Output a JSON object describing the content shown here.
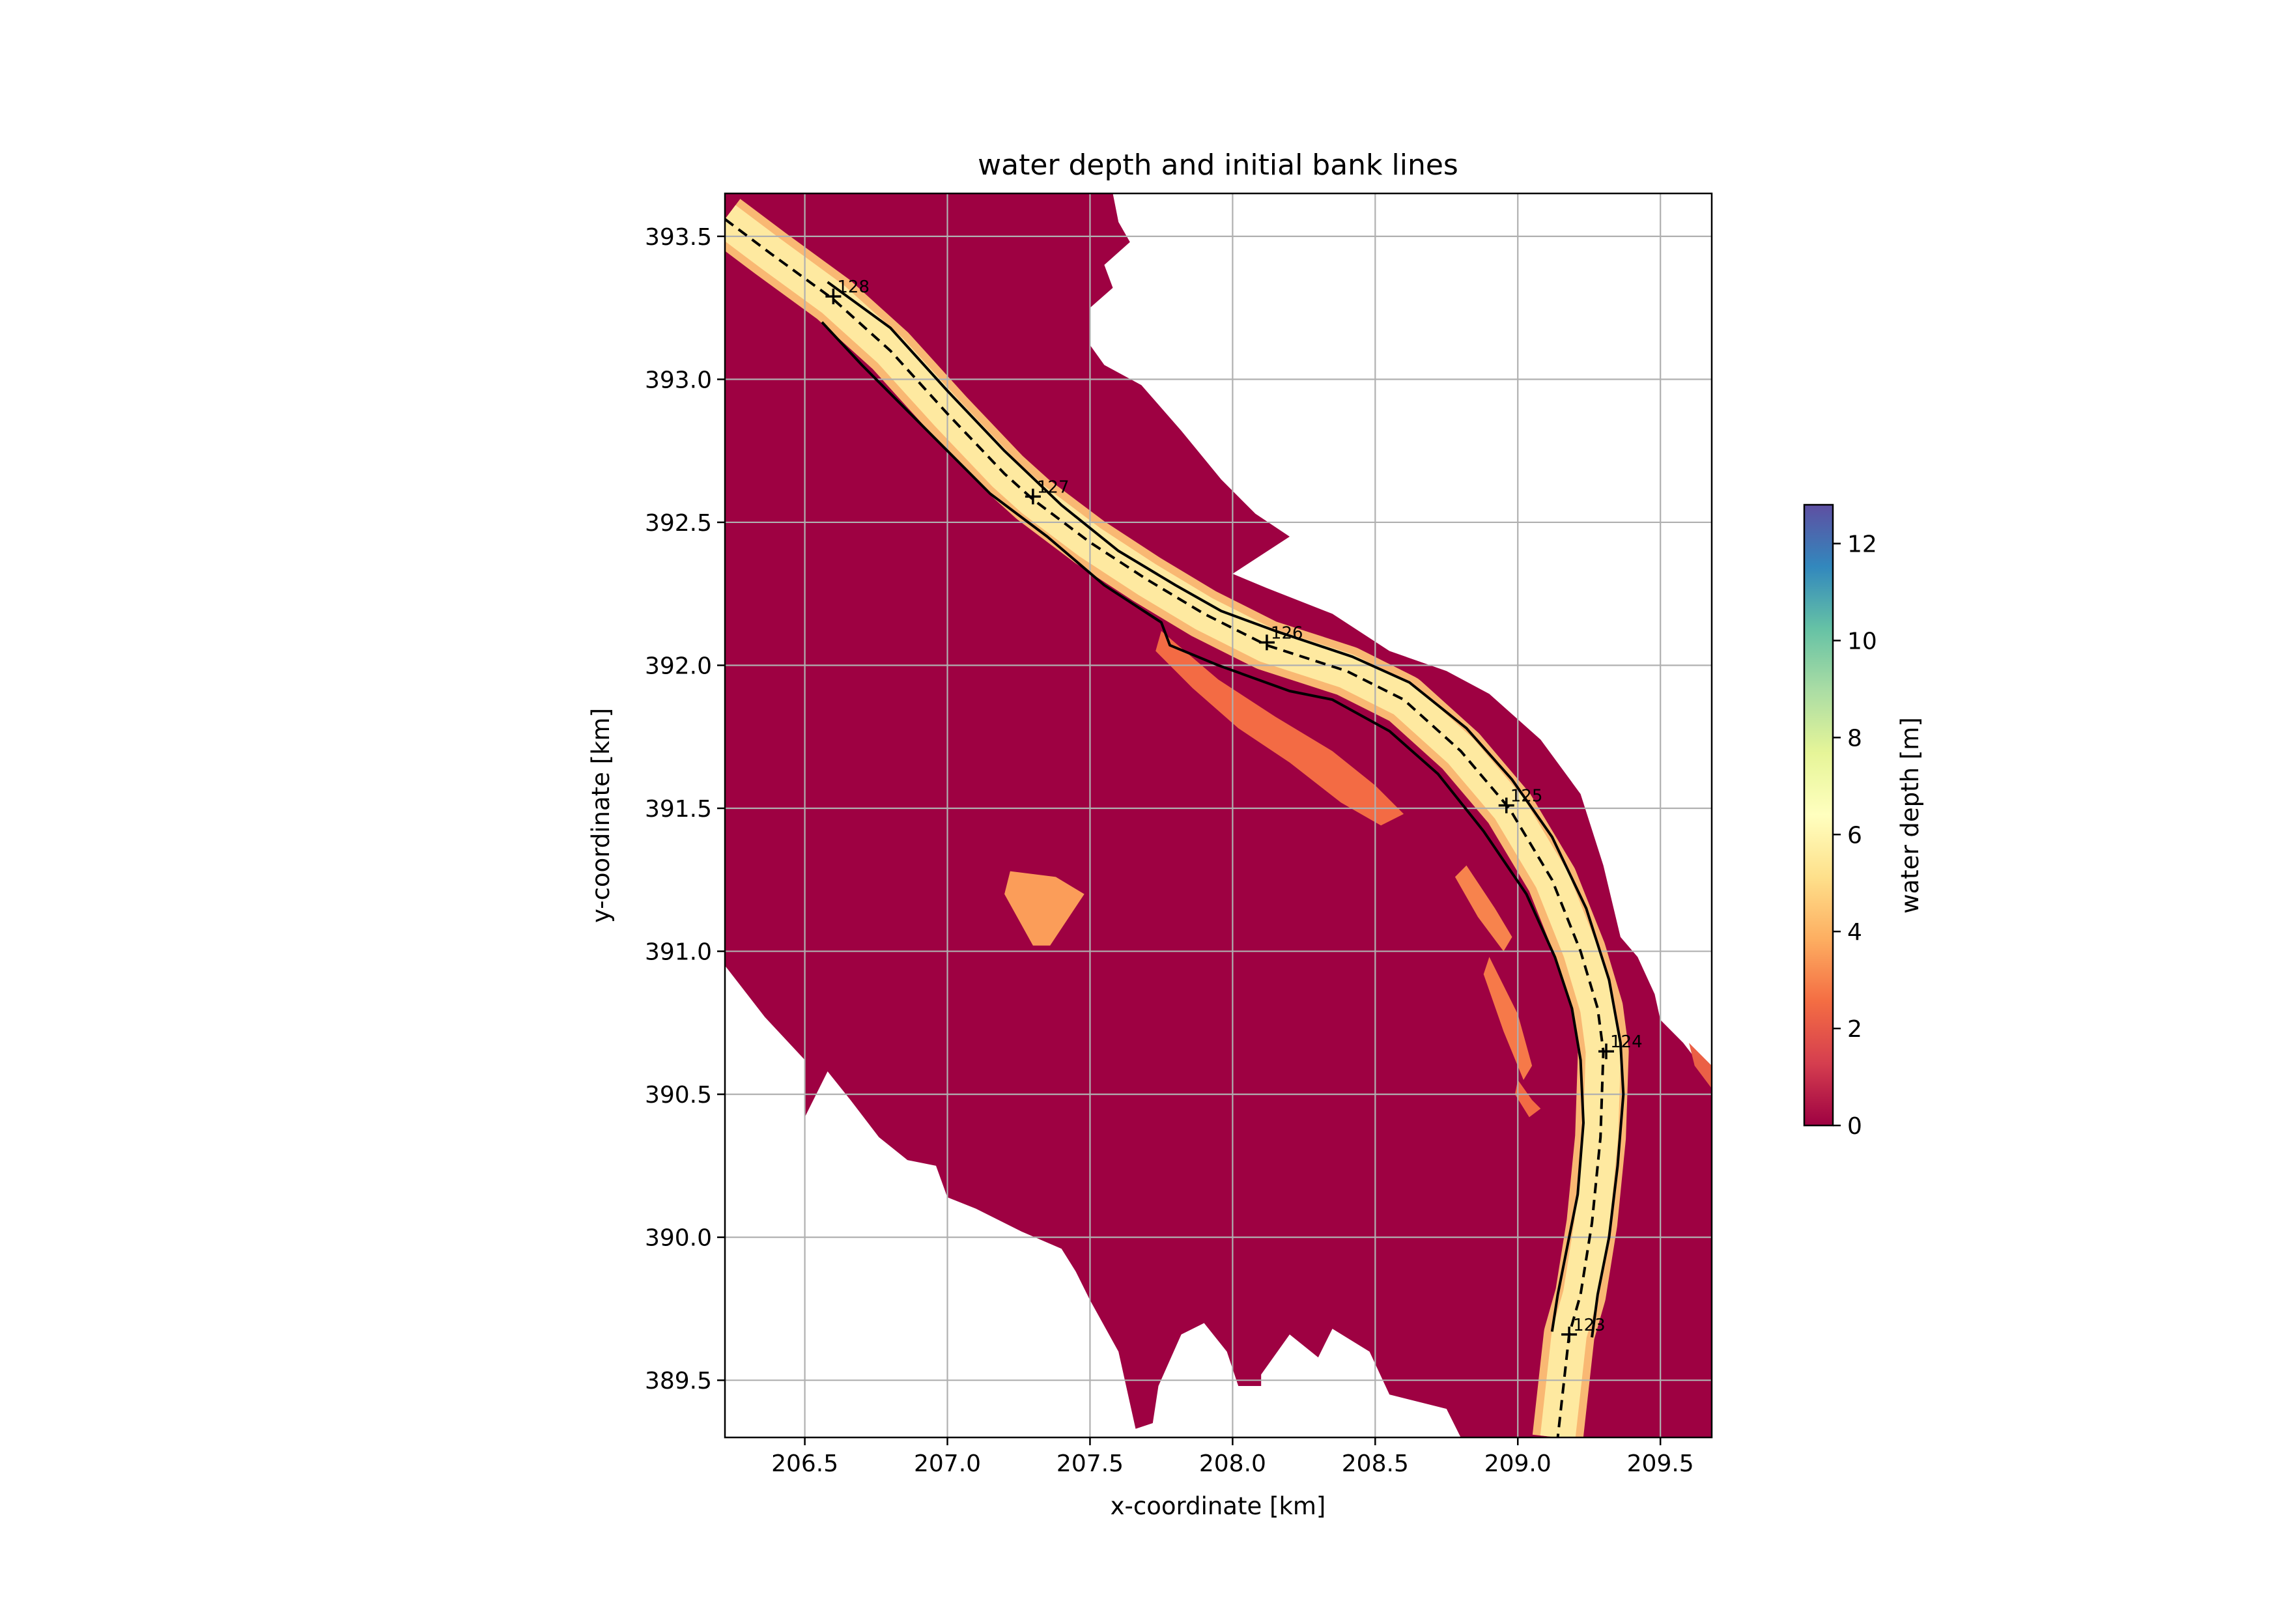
{
  "chart_data": {
    "type": "heatmap",
    "title": "water depth and initial bank lines",
    "xlabel": "x-coordinate [km]",
    "ylabel": "y-coordinate [km]",
    "xlim": [
      206.22,
      209.68
    ],
    "ylim": [
      389.3,
      393.65
    ],
    "xticks": [
      206.5,
      207.0,
      207.5,
      208.0,
      208.5,
      209.0,
      209.5
    ],
    "xtick_labels": [
      "206.5",
      "207.0",
      "207.5",
      "208.0",
      "208.5",
      "209.0",
      "209.5"
    ],
    "yticks": [
      389.5,
      390.0,
      390.5,
      391.0,
      391.5,
      392.0,
      392.5,
      393.0,
      393.5
    ],
    "ytick_labels": [
      "389.5",
      "390.0",
      "390.5",
      "391.0",
      "391.5",
      "392.0",
      "392.5",
      "393.0",
      "393.5"
    ],
    "grid": true,
    "colorbar": {
      "label": "water depth [m]",
      "range": [
        0,
        12.8
      ],
      "ticks": [
        0,
        2,
        4,
        6,
        8,
        10,
        12
      ],
      "tick_labels": [
        "0",
        "2",
        "4",
        "6",
        "8",
        "10",
        "12"
      ],
      "colormap": "Spectral",
      "stops": [
        "#9e0142",
        "#d53e4f",
        "#f46d43",
        "#fdae61",
        "#fee08b",
        "#ffffbf",
        "#e6f598",
        "#abdda4",
        "#66c2a5",
        "#3288bd",
        "#5e4fa2"
      ]
    },
    "floodplain_color": "#9e0142",
    "channel_color": "#fee9a0",
    "floodplain_outline": [
      [
        206.22,
        393.65
      ],
      [
        207.58,
        393.65
      ],
      [
        207.6,
        393.55
      ],
      [
        207.64,
        393.48
      ],
      [
        207.55,
        393.4
      ],
      [
        207.58,
        393.32
      ],
      [
        207.5,
        393.25
      ],
      [
        207.5,
        393.12
      ],
      [
        207.55,
        393.05
      ],
      [
        207.68,
        392.98
      ],
      [
        207.82,
        392.82
      ],
      [
        207.96,
        392.65
      ],
      [
        208.08,
        392.53
      ],
      [
        208.2,
        392.45
      ],
      [
        208.0,
        392.32
      ],
      [
        208.12,
        392.27
      ],
      [
        208.35,
        392.18
      ],
      [
        208.55,
        392.05
      ],
      [
        208.75,
        391.98
      ],
      [
        208.9,
        391.9
      ],
      [
        209.08,
        391.74
      ],
      [
        209.22,
        391.55
      ],
      [
        209.3,
        391.3
      ],
      [
        209.36,
        391.05
      ],
      [
        209.42,
        390.98
      ],
      [
        209.48,
        390.85
      ],
      [
        209.5,
        390.76
      ],
      [
        209.58,
        390.68
      ],
      [
        209.68,
        390.55
      ],
      [
        209.68,
        389.3
      ],
      [
        208.8,
        389.3
      ],
      [
        208.75,
        389.4
      ],
      [
        208.55,
        389.45
      ],
      [
        208.48,
        389.6
      ],
      [
        208.35,
        389.68
      ],
      [
        208.3,
        389.58
      ],
      [
        208.2,
        389.66
      ],
      [
        208.1,
        389.52
      ],
      [
        208.1,
        389.48
      ],
      [
        208.02,
        389.48
      ],
      [
        207.98,
        389.6
      ],
      [
        207.9,
        389.7
      ],
      [
        207.82,
        389.66
      ],
      [
        207.74,
        389.48
      ],
      [
        207.72,
        389.35
      ],
      [
        207.66,
        389.33
      ],
      [
        207.6,
        389.6
      ],
      [
        207.5,
        389.78
      ],
      [
        207.45,
        389.88
      ],
      [
        207.4,
        389.96
      ],
      [
        207.26,
        390.02
      ],
      [
        207.1,
        390.1
      ],
      [
        207.0,
        390.14
      ],
      [
        206.96,
        390.25
      ],
      [
        206.86,
        390.27
      ],
      [
        206.76,
        390.35
      ],
      [
        206.66,
        390.48
      ],
      [
        206.58,
        390.58
      ],
      [
        206.5,
        390.42
      ],
      [
        206.5,
        390.62
      ],
      [
        206.36,
        390.77
      ],
      [
        206.22,
        390.95
      ]
    ],
    "channel_centerline": [
      [
        206.22,
        393.56
      ],
      [
        206.38,
        393.44
      ],
      [
        206.6,
        393.28
      ],
      [
        206.8,
        393.1
      ],
      [
        207.0,
        392.88
      ],
      [
        207.2,
        392.67
      ],
      [
        207.3,
        392.58
      ],
      [
        207.5,
        392.43
      ],
      [
        207.7,
        392.3
      ],
      [
        207.9,
        392.18
      ],
      [
        208.12,
        392.07
      ],
      [
        208.4,
        391.98
      ],
      [
        208.6,
        391.88
      ],
      [
        208.8,
        391.7
      ],
      [
        208.97,
        391.5
      ],
      [
        209.12,
        391.25
      ],
      [
        209.22,
        391.0
      ],
      [
        209.28,
        390.8
      ],
      [
        209.3,
        390.65
      ],
      [
        209.29,
        390.35
      ],
      [
        209.26,
        390.05
      ],
      [
        209.22,
        389.8
      ],
      [
        209.18,
        389.66
      ],
      [
        209.14,
        389.3
      ]
    ],
    "bank_lines": [
      [
        [
          206.58,
          393.34
        ],
        [
          206.8,
          393.18
        ],
        [
          207.0,
          392.96
        ],
        [
          207.2,
          392.75
        ],
        [
          207.4,
          392.56
        ],
        [
          207.6,
          392.4
        ],
        [
          207.8,
          392.28
        ],
        [
          207.96,
          392.19
        ],
        [
          208.15,
          392.12
        ],
        [
          208.42,
          392.03
        ],
        [
          208.62,
          391.94
        ],
        [
          208.82,
          391.78
        ],
        [
          208.98,
          391.6
        ],
        [
          209.12,
          391.4
        ],
        [
          209.24,
          391.15
        ],
        [
          209.32,
          390.9
        ],
        [
          209.36,
          390.68
        ],
        [
          209.37,
          390.5
        ],
        [
          209.35,
          390.25
        ],
        [
          209.32,
          390.0
        ],
        [
          209.28,
          389.8
        ],
        [
          209.26,
          389.65
        ]
      ],
      [
        [
          206.56,
          393.2
        ],
        [
          206.7,
          393.05
        ],
        [
          206.95,
          392.8
        ],
        [
          207.15,
          392.6
        ],
        [
          207.35,
          392.45
        ],
        [
          207.55,
          392.28
        ],
        [
          207.75,
          392.15
        ],
        [
          207.78,
          392.07
        ],
        [
          207.95,
          392.0
        ],
        [
          208.2,
          391.91
        ],
        [
          208.35,
          391.88
        ],
        [
          208.55,
          391.77
        ],
        [
          208.72,
          391.62
        ],
        [
          208.88,
          391.42
        ],
        [
          209.03,
          391.2
        ],
        [
          209.13,
          390.98
        ],
        [
          209.19,
          390.8
        ],
        [
          209.22,
          390.62
        ],
        [
          209.23,
          390.4
        ],
        [
          209.21,
          390.15
        ],
        [
          209.17,
          389.95
        ],
        [
          209.14,
          389.8
        ],
        [
          209.12,
          389.67
        ]
      ]
    ],
    "shallow_patches": [
      {
        "depth": 2.5,
        "points": [
          [
            207.75,
            392.12
          ],
          [
            207.95,
            391.95
          ],
          [
            208.15,
            391.82
          ],
          [
            208.35,
            391.7
          ],
          [
            208.5,
            391.58
          ],
          [
            208.6,
            391.48
          ],
          [
            208.52,
            391.44
          ],
          [
            208.38,
            391.52
          ],
          [
            208.2,
            391.66
          ],
          [
            208.02,
            391.78
          ],
          [
            207.86,
            391.92
          ],
          [
            207.73,
            392.05
          ]
        ]
      },
      {
        "depth": 3.0,
        "points": [
          [
            208.82,
            391.3
          ],
          [
            208.92,
            391.15
          ],
          [
            208.98,
            391.05
          ],
          [
            208.95,
            391.0
          ],
          [
            208.86,
            391.12
          ],
          [
            208.78,
            391.26
          ]
        ]
      },
      {
        "depth": 2.8,
        "points": [
          [
            208.9,
            390.98
          ],
          [
            209.0,
            390.78
          ],
          [
            209.05,
            390.6
          ],
          [
            209.02,
            390.55
          ],
          [
            208.95,
            390.72
          ],
          [
            208.88,
            390.92
          ]
        ]
      },
      {
        "depth": 2.5,
        "points": [
          [
            209.0,
            390.55
          ],
          [
            209.05,
            390.48
          ],
          [
            209.08,
            390.45
          ],
          [
            209.04,
            390.42
          ],
          [
            208.99,
            390.5
          ]
        ]
      },
      {
        "depth": 3.5,
        "points": [
          [
            207.22,
            391.28
          ],
          [
            207.38,
            391.26
          ],
          [
            207.48,
            391.2
          ],
          [
            207.36,
            391.02
          ],
          [
            207.3,
            391.02
          ],
          [
            207.2,
            391.2
          ]
        ]
      },
      {
        "depth": 2.2,
        "points": [
          [
            209.6,
            390.68
          ],
          [
            209.68,
            390.6
          ],
          [
            209.68,
            390.52
          ],
          [
            209.62,
            390.6
          ]
        ]
      }
    ],
    "km_markers": [
      {
        "label": "123",
        "x": 209.18,
        "y": 389.66
      },
      {
        "label": "124",
        "x": 209.31,
        "y": 390.65
      },
      {
        "label": "125",
        "x": 208.96,
        "y": 391.51
      },
      {
        "label": "126",
        "x": 208.12,
        "y": 392.08
      },
      {
        "label": "127",
        "x": 207.3,
        "y": 392.59
      },
      {
        "label": "128",
        "x": 206.6,
        "y": 393.29
      }
    ]
  }
}
